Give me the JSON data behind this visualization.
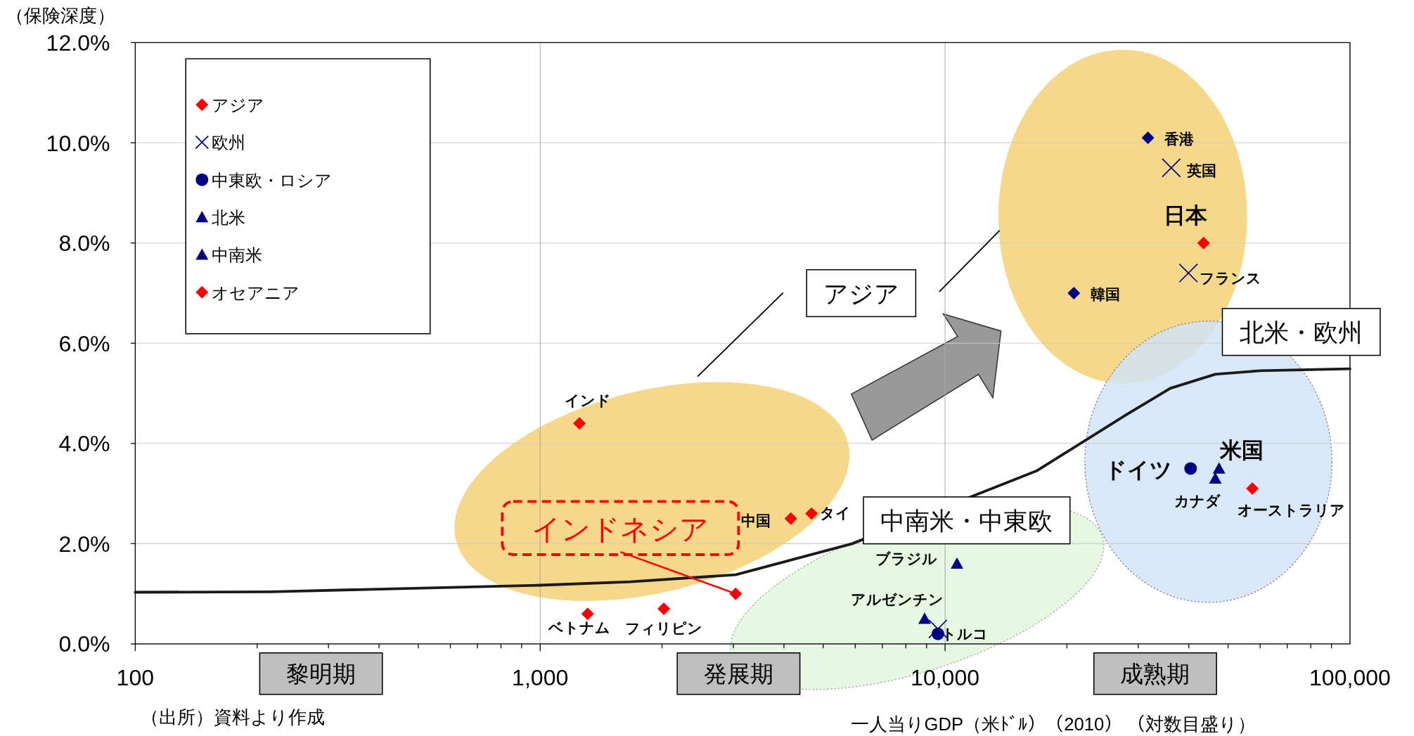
{
  "chart_data": {
    "type": "scatter",
    "ylabel": "（保険深度）",
    "xlabel": "一人当りGDP（米ﾄﾞﾙ）（2010） （対数目盛り）",
    "log": "x",
    "xlim": [
      100,
      100000
    ],
    "xticks": [
      {
        "value": 100,
        "label": "100"
      },
      {
        "value": 1000,
        "label": "1,000"
      },
      {
        "value": 10000,
        "label": "10,000"
      },
      {
        "value": 100000,
        "label": "100,000"
      }
    ],
    "ylim": [
      0,
      12
    ],
    "yticks": [
      {
        "value": 0,
        "label": "0.0%"
      },
      {
        "value": 2,
        "label": "2.0%"
      },
      {
        "value": 4,
        "label": "4.0%"
      },
      {
        "value": 6,
        "label": "6.0%"
      },
      {
        "value": 8,
        "label": "8.0%"
      },
      {
        "value": 10,
        "label": "10.0%"
      },
      {
        "value": 12,
        "label": "12.0%"
      }
    ],
    "grid": true,
    "legend": "top left",
    "series": [
      {
        "name": "アジア",
        "marker": "diamond",
        "color": "#ff0000",
        "x": [
          1250,
          4160,
          4680,
          1310,
          2020,
          3040,
          31700,
          20800,
          43500
        ],
        "values": [
          4.4,
          2.5,
          2.6,
          0.6,
          0.7,
          1.0,
          10.1,
          7.0,
          8.0
        ],
        "colors": [
          "#ff0000",
          "#ff0000",
          "#ff0000",
          "#ff0000",
          "#ff0000",
          "#ff0000",
          "#000080",
          "#000080",
          "#ff0000"
        ]
      },
      {
        "name": "欧州",
        "marker": "cross",
        "color": "#000080",
        "x": [
          36200,
          39900,
          9600
        ],
        "values": [
          9.5,
          7.4,
          0.3
        ]
      },
      {
        "name": "中東欧・ロシア",
        "marker": "circle",
        "color": "#000080",
        "x": [
          40400,
          9600
        ],
        "values": [
          3.5,
          0.2
        ]
      },
      {
        "name": "北米",
        "marker": "triangle",
        "color": "#000080",
        "x": [
          47500,
          46500
        ],
        "values": [
          3.5,
          3.3
        ]
      },
      {
        "name": "中南米",
        "marker": "triangle",
        "color": "#000080",
        "x": [
          10700,
          8900
        ],
        "values": [
          1.6,
          0.5
        ]
      },
      {
        "name": "オセアニア",
        "marker": "diamond",
        "color": "#ff0000",
        "x": [
          57400
        ],
        "values": [
          3.1
        ]
      },
      {
        "type": "line",
        "color": "#1a1a1a",
        "x": [
          100,
          216,
          1000,
          1670,
          3040,
          5900,
          16800,
          28000,
          36000,
          46500,
          60000,
          100000
        ],
        "values": [
          1.03,
          1.04,
          1.17,
          1.24,
          1.38,
          2.0,
          3.45,
          4.57,
          5.1,
          5.38,
          5.45,
          5.49
        ]
      }
    ],
    "annotations": [
      {
        "text": "インド",
        "x": 1250,
        "y": 4.4
      },
      {
        "text": "中国",
        "x": 4160,
        "y": 2.5
      },
      {
        "text": "タイ",
        "x": 4680,
        "y": 2.6
      },
      {
        "text": "ベトナム",
        "x": 1310,
        "y": 0.6
      },
      {
        "text": "フィリピン",
        "x": 2020,
        "y": 0.7
      },
      {
        "text": "インドネシア",
        "x": 3040,
        "y": 1.0
      },
      {
        "text": "香港",
        "x": 31700,
        "y": 10.1
      },
      {
        "text": "韓国",
        "x": 20800,
        "y": 7.0
      },
      {
        "text": "日本",
        "x": 43500,
        "y": 8.0
      },
      {
        "text": "英国",
        "x": 36200,
        "y": 9.5
      },
      {
        "text": "フランス",
        "x": 39900,
        "y": 7.4
      },
      {
        "text": "トルコ",
        "x": 9600,
        "y": 0.3
      },
      {
        "text": "ドイツ",
        "x": 40400,
        "y": 3.5
      },
      {
        "text": "米国",
        "x": 47500,
        "y": 3.5
      },
      {
        "text": "カナダ",
        "x": 46500,
        "y": 3.3
      },
      {
        "text": "ブラジル",
        "x": 10700,
        "y": 1.6
      },
      {
        "text": "アルゼンチン",
        "x": 8900,
        "y": 0.5
      },
      {
        "text": "オーストラリア",
        "x": 57400,
        "y": 3.1
      },
      "アジア",
      "北米・欧州",
      "中南米・中東欧",
      "黎明期",
      "発展期",
      "成熟期",
      "（出所）資料より作成"
    ]
  }
}
